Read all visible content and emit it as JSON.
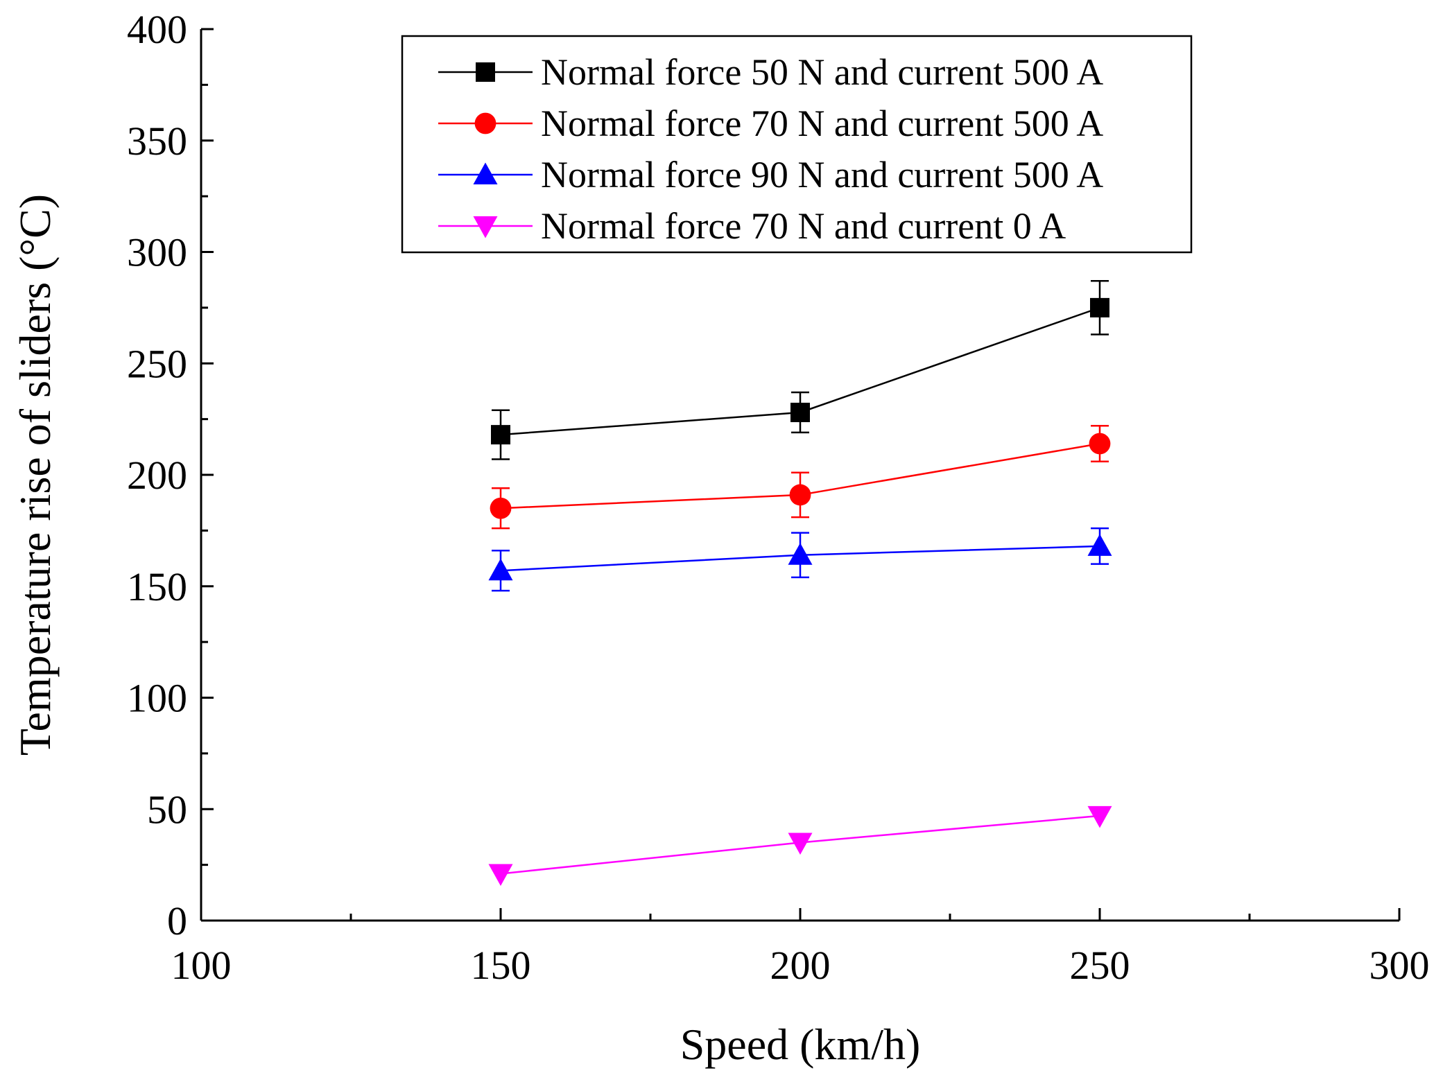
{
  "chart_data": {
    "type": "line",
    "xlabel": "Speed (km/h)",
    "ylabel": "Temperature rise of sliders (°C)",
    "xlim": [
      100,
      300
    ],
    "ylim": [
      0,
      400
    ],
    "x_ticks": [
      100,
      150,
      200,
      250,
      300
    ],
    "y_ticks": [
      0,
      50,
      100,
      150,
      200,
      250,
      300,
      350,
      400
    ],
    "grid": false,
    "legend_position": "top-right",
    "x": [
      150,
      200,
      250
    ],
    "series": [
      {
        "name": "Normal force 50 N and current 500 A",
        "values": [
          218,
          228,
          275
        ],
        "errors": [
          11,
          9,
          12
        ],
        "color": "#000000",
        "marker": "square"
      },
      {
        "name": "Normal force 70 N and current 500 A",
        "values": [
          185,
          191,
          214
        ],
        "errors": [
          9,
          10,
          8
        ],
        "color": "#ff0000",
        "marker": "circle"
      },
      {
        "name": "Normal force 90 N and current 500 A",
        "values": [
          157,
          164,
          168
        ],
        "errors": [
          9,
          10,
          8
        ],
        "color": "#0000ff",
        "marker": "triangle-up"
      },
      {
        "name": "Normal force 70 N and current 0 A",
        "values": [
          21,
          35,
          47
        ],
        "errors": [
          0,
          0,
          0
        ],
        "color": "#ff00ff",
        "marker": "triangle-down"
      }
    ]
  }
}
